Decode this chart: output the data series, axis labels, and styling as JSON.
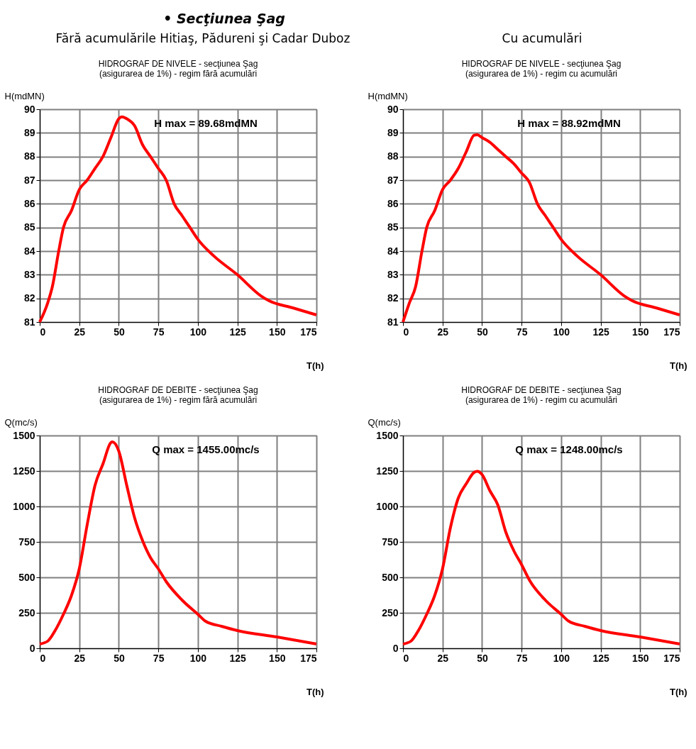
{
  "chart_data": [
    {
      "type": "line",
      "title": "HIDROGRAF DE NIVELE - secţiunea Şag",
      "subtitle": "(asigurarea de 1%)    - regim fără acumulări",
      "xlabel": "T(h)",
      "ylabel": "H(mdMN)",
      "annotations": [
        "• Secţiunea Şag",
        "Fără acumulările Hitiaş, Pădureni şi Cadar Duboz",
        "H max = 89.68mdMN"
      ],
      "x": [
        0,
        5,
        8,
        12,
        15,
        20,
        25,
        30,
        35,
        40,
        45,
        50,
        52,
        55,
        60,
        65,
        70,
        75,
        80,
        85,
        90,
        95,
        100,
        110,
        125,
        140,
        145,
        160,
        175
      ],
      "series": [
        {
          "color": "#ff0000",
          "values": [
            81,
            81.8,
            82.5,
            84,
            85,
            85.7,
            86.6,
            87,
            87.5,
            88,
            88.8,
            89.6,
            89.68,
            89.6,
            89.3,
            88.5,
            88,
            87.5,
            87,
            86,
            85.5,
            85,
            84.5,
            83.8,
            83,
            82.1,
            81.9,
            81.6,
            81.3
          ]
        }
      ],
      "xlim": [
        0,
        175
      ],
      "xticks": [
        0,
        25,
        50,
        75,
        100,
        125,
        150,
        175
      ],
      "ylim": [
        81,
        90
      ],
      "yticks": [
        81,
        82,
        83,
        84,
        85,
        86,
        87,
        88,
        89,
        90
      ],
      "grid": true
    },
    {
      "type": "line",
      "title": "HIDROGRAF DE NIVELE - secţiunea Şag",
      "subtitle": "(asigurarea de 1%)  - regim cu acumulări",
      "xlabel": "T(h)",
      "ylabel": "H(mdMN)",
      "annotations": [
        "Cu acumulări",
        "H max = 88.92mdMN"
      ],
      "x": [
        0,
        4,
        8,
        12,
        15,
        20,
        25,
        30,
        35,
        40,
        45,
        47,
        50,
        55,
        60,
        65,
        70,
        75,
        80,
        85,
        90,
        95,
        100,
        110,
        125,
        140,
        145,
        160,
        175
      ],
      "series": [
        {
          "color": "#ff0000",
          "values": [
            81,
            81.8,
            82.5,
            84,
            85,
            85.7,
            86.6,
            87,
            87.5,
            88.2,
            88.9,
            88.92,
            88.8,
            88.6,
            88.3,
            88,
            87.7,
            87.3,
            86.9,
            86,
            85.5,
            85,
            84.5,
            83.8,
            83,
            82.1,
            81.9,
            81.6,
            81.3
          ]
        }
      ],
      "xlim": [
        0,
        175
      ],
      "xticks": [
        0,
        25,
        50,
        75,
        100,
        125,
        150,
        175
      ],
      "ylim": [
        81,
        90
      ],
      "yticks": [
        81,
        82,
        83,
        84,
        85,
        86,
        87,
        88,
        89,
        90
      ],
      "grid": true
    },
    {
      "type": "line",
      "title": "HIDROGRAF DE DEBITE - secţiunea Şag",
      "subtitle": "(asigurarea de 1%) - regim fără acumulări",
      "xlabel": "T(h)",
      "ylabel": "Q(mc/s)",
      "annotations": [
        "Q max = 1455.00mc/s"
      ],
      "x": [
        0,
        5,
        10,
        15,
        20,
        25,
        30,
        35,
        40,
        45,
        46,
        50,
        55,
        60,
        65,
        70,
        75,
        80,
        90,
        100,
        105,
        115,
        125,
        150,
        175
      ],
      "series": [
        {
          "color": "#ff0000",
          "values": [
            30,
            50,
            130,
            240,
            370,
            560,
            870,
            1150,
            1300,
            1450,
            1455,
            1390,
            1150,
            920,
            760,
            640,
            560,
            470,
            340,
            240,
            190,
            155,
            125,
            80,
            30
          ]
        }
      ],
      "xlim": [
        0,
        175
      ],
      "xticks": [
        0,
        25,
        50,
        75,
        100,
        125,
        150,
        175
      ],
      "ylim": [
        0,
        1500
      ],
      "yticks": [
        0,
        250,
        500,
        750,
        1000,
        1250,
        1500
      ],
      "grid": true
    },
    {
      "type": "line",
      "title": "HIDROGRAF DE DEBITE - secţiunea Şag",
      "subtitle": "(asigurarea de 1%)  - regim cu acumulări",
      "xlabel": "T(h)",
      "ylabel": "Q(mc/s)",
      "annotations": [
        "Q max = 1248.00mc/s"
      ],
      "x": [
        0,
        5,
        10,
        15,
        20,
        25,
        30,
        35,
        40,
        45,
        47,
        50,
        55,
        60,
        65,
        70,
        75,
        80,
        90,
        100,
        105,
        115,
        125,
        150,
        175
      ],
      "series": [
        {
          "color": "#ff0000",
          "values": [
            30,
            50,
            130,
            240,
            370,
            560,
            850,
            1060,
            1160,
            1240,
            1248,
            1225,
            1110,
            1010,
            820,
            690,
            590,
            480,
            340,
            240,
            190,
            155,
            125,
            80,
            30
          ]
        }
      ],
      "xlim": [
        0,
        175
      ],
      "xticks": [
        0,
        25,
        50,
        75,
        100,
        125,
        150,
        175
      ],
      "ylim": [
        0,
        1500
      ],
      "yticks": [
        0,
        250,
        500,
        750,
        1000,
        1250,
        1500
      ],
      "grid": true
    }
  ]
}
